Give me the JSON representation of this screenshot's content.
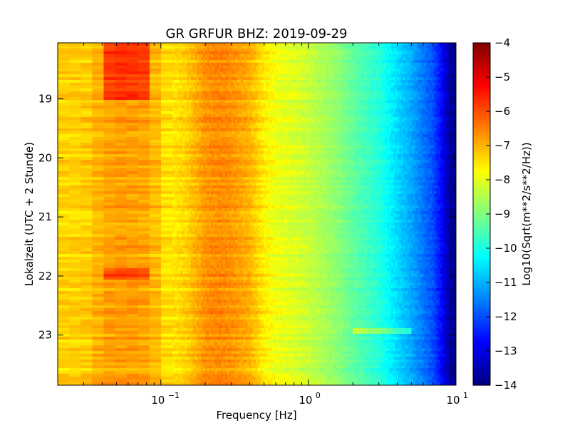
{
  "chart_data": {
    "type": "heatmap",
    "title": "GR GRFUR BHZ: 2019-09-29",
    "xlabel": "Frequency [Hz]",
    "ylabel": "Lokalzeit (UTC + 2 Stunde)",
    "x_scale": "log",
    "xlim": [
      0.02,
      10
    ],
    "ylim_hours": [
      18.05,
      23.85
    ],
    "y_inverted": true,
    "x_ticks": [
      {
        "value": 0.1,
        "base": "10",
        "exp": "−1"
      },
      {
        "value": 1,
        "base": "10",
        "exp": "0"
      },
      {
        "value": 10,
        "base": "10",
        "exp": "1"
      }
    ],
    "y_ticks": [
      {
        "value": 19,
        "label": "19"
      },
      {
        "value": 20,
        "label": "20"
      },
      {
        "value": 21,
        "label": "21"
      },
      {
        "value": 22,
        "label": "22"
      },
      {
        "value": 23,
        "label": "23"
      }
    ],
    "colorbar": {
      "label": "Log10(Sqrt(m**2/s**2/Hz))",
      "colormap": "jet",
      "range": [
        -14,
        -4
      ],
      "ticks": [
        {
          "value": -4,
          "label": "−4"
        },
        {
          "value": -5,
          "label": "−5"
        },
        {
          "value": -6,
          "label": "−6"
        },
        {
          "value": -7,
          "label": "−7"
        },
        {
          "value": -8,
          "label": "−8"
        },
        {
          "value": -9,
          "label": "−9"
        },
        {
          "value": -10,
          "label": "−10"
        },
        {
          "value": -11,
          "label": "−11"
        },
        {
          "value": -12,
          "label": "−12"
        },
        {
          "value": -13,
          "label": "−13"
        },
        {
          "value": -14,
          "label": "−14"
        }
      ]
    },
    "spectrum_profile": {
      "frequency_hz": [
        0.02,
        0.03,
        0.04,
        0.05,
        0.07,
        0.09,
        0.1,
        0.12,
        0.15,
        0.2,
        0.25,
        0.3,
        0.4,
        0.5,
        0.6,
        0.8,
        1,
        1.5,
        2,
        3,
        4,
        5,
        7,
        8,
        9,
        10
      ],
      "level": [
        -7.3,
        -7.3,
        -6.9,
        -6.8,
        -6.8,
        -7.0,
        -7.4,
        -7.5,
        -7.3,
        -6.7,
        -6.6,
        -6.7,
        -7.0,
        -7.6,
        -7.9,
        -8.1,
        -8.3,
        -8.8,
        -9.3,
        -9.9,
        -10.6,
        -11.1,
        -12.0,
        -12.7,
        -13.6,
        -14.0
      ]
    },
    "events": [
      {
        "freq_range_hz": [
          0.04,
          0.09
        ],
        "time_range_hours": [
          18.05,
          19.0
        ],
        "level_offset": 1.0
      },
      {
        "freq_range_hz": [
          0.04,
          0.09
        ],
        "time_range_hours": [
          21.85,
          22.05
        ],
        "level_offset": 0.8
      },
      {
        "freq_range_hz": [
          2.0,
          5.0
        ],
        "time_range_hours": [
          22.9,
          23.0
        ],
        "level_offset": 1.0
      }
    ]
  }
}
